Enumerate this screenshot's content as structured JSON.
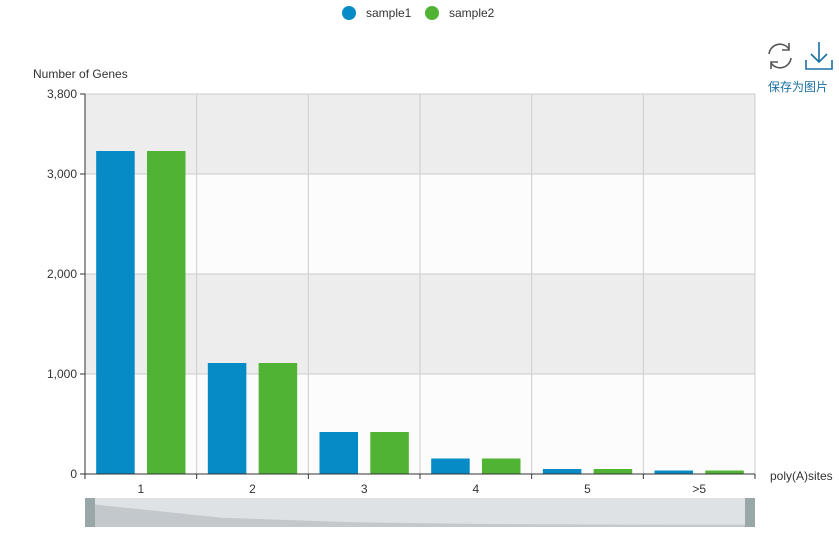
{
  "chart_data": {
    "type": "bar",
    "categories": [
      "1",
      "2",
      "3",
      "4",
      "5",
      ">5"
    ],
    "series": [
      {
        "name": "sample1",
        "color": "#068bc6",
        "values": [
          3230,
          1110,
          420,
          155,
          50,
          35
        ]
      },
      {
        "name": "sample2",
        "color": "#51b333",
        "values": [
          3230,
          1110,
          420,
          155,
          50,
          35
        ]
      }
    ],
    "xlabel": "poly(A)sites",
    "ylabel": "Number of Genes",
    "ylim": [
      0,
      3800
    ],
    "yticks": [
      "0",
      "1,000",
      "2,000",
      "3,000",
      "3,800"
    ],
    "ytick_values": [
      0,
      1000,
      2000,
      3000,
      3800
    ],
    "grid": true,
    "legend_position": "top-center"
  },
  "toolbox": {
    "refresh_icon": "refresh-icon",
    "download_icon": "download-icon",
    "save_label": "保存为图片"
  }
}
